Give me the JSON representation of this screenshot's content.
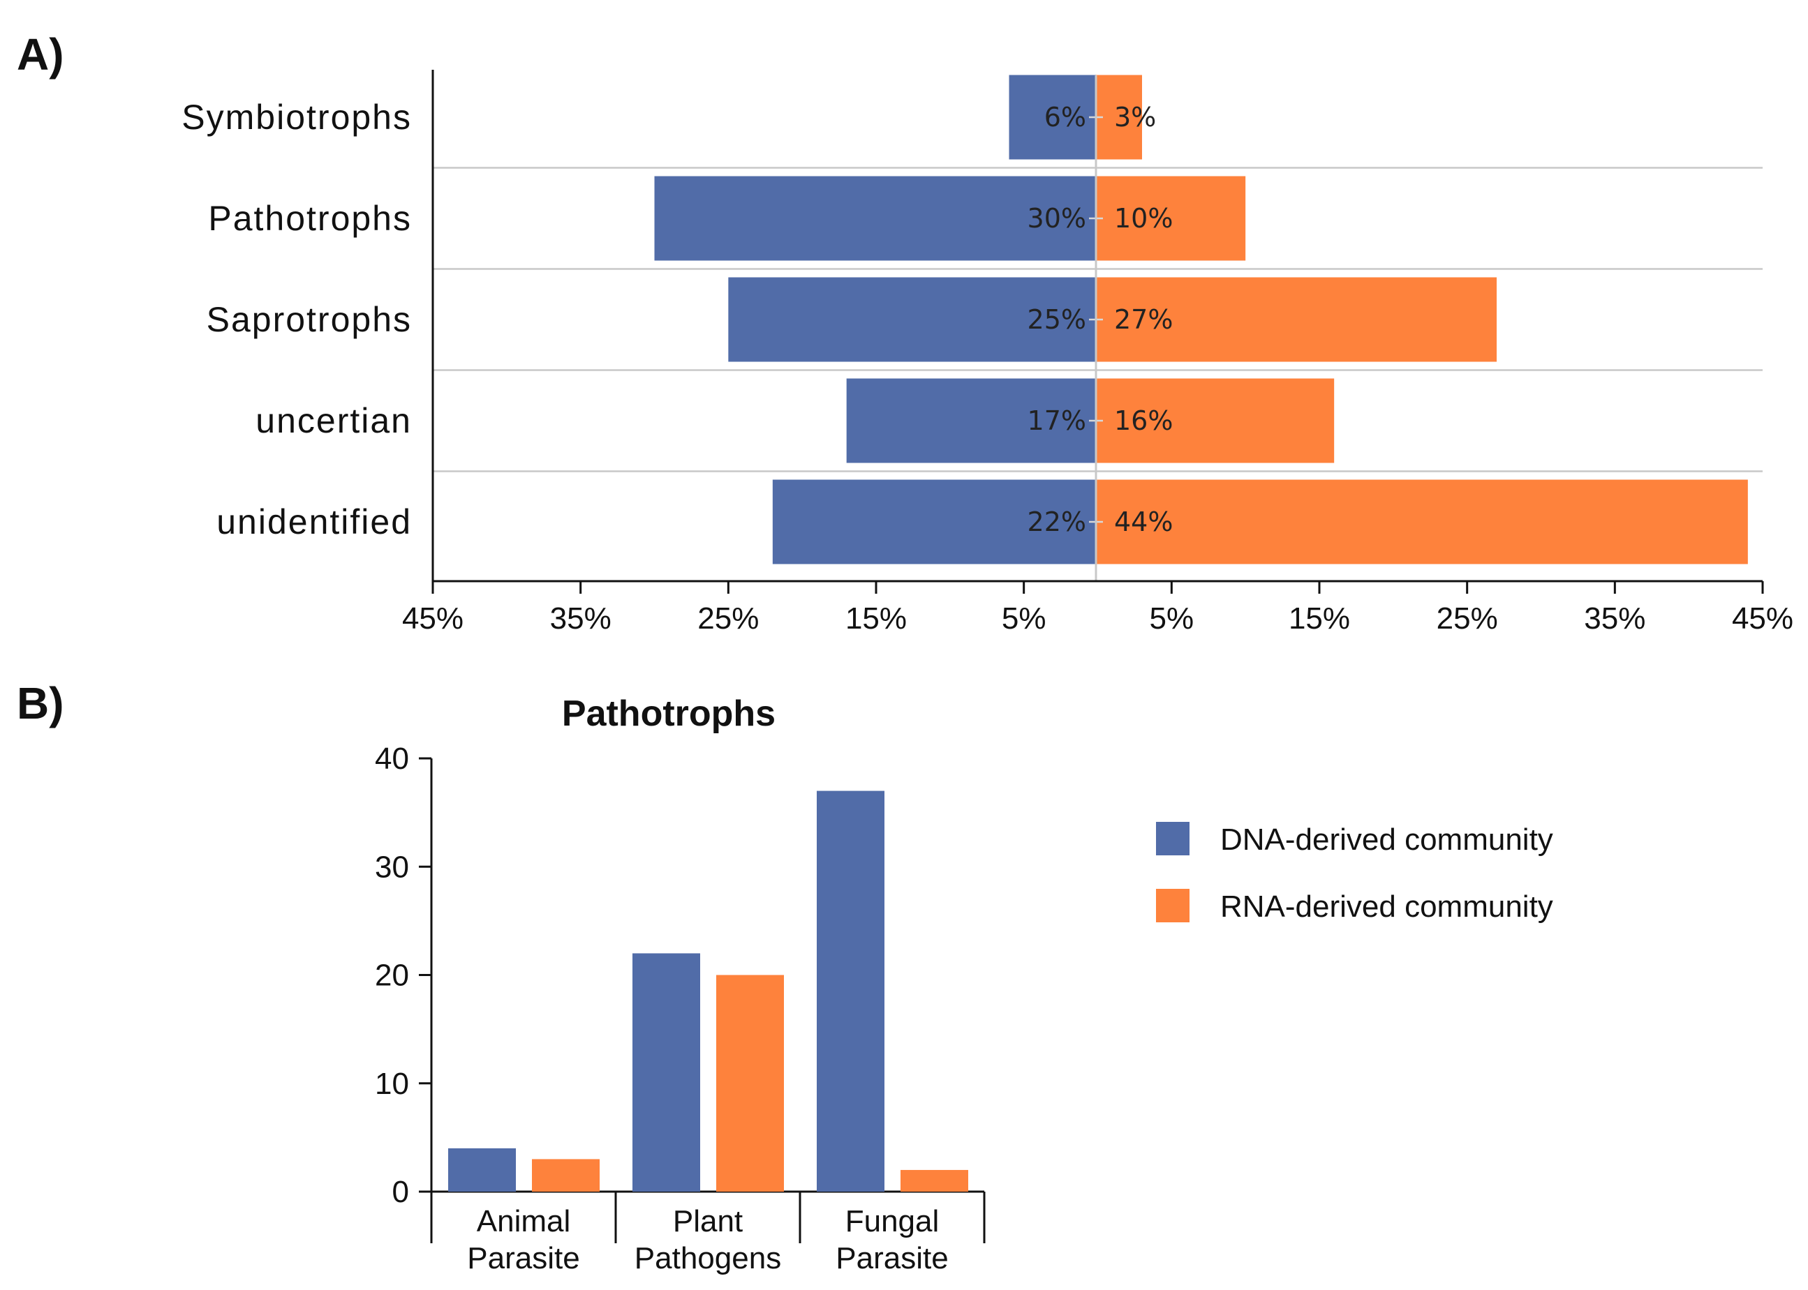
{
  "panels": {
    "a_label": "A)",
    "b_label": "B)"
  },
  "colors": {
    "dna": "#516ca8",
    "rna": "#fe823c"
  },
  "chart_data": [
    {
      "id": "A",
      "type": "bar",
      "orientation": "horizontal-diverging",
      "categories": [
        "Symbiotrophs",
        "Pathotrophs",
        "Saprotrophs",
        "uncertian",
        "unidentified"
      ],
      "series": [
        {
          "name": "DNA-derived community",
          "direction": "left",
          "values": [
            6,
            30,
            25,
            17,
            22
          ],
          "labels": [
            "6%",
            "30%",
            "25%",
            "17%",
            "22%"
          ]
        },
        {
          "name": "RNA-derived community",
          "direction": "right",
          "values": [
            3,
            10,
            27,
            16,
            44
          ],
          "labels": [
            "3%",
            "10%",
            "27%",
            "16%",
            "44%"
          ]
        }
      ],
      "xlim": [
        -45,
        45
      ],
      "xticks": [
        -45,
        -35,
        -25,
        -15,
        -5,
        5,
        15,
        25,
        35,
        45
      ],
      "xtick_labels": [
        "45%",
        "35%",
        "25%",
        "15%",
        "5%",
        "5%",
        "15%",
        "25%",
        "35%",
        "45%"
      ],
      "title": "",
      "xlabel": "",
      "ylabel": "",
      "grid": "horizontal separators between categories"
    },
    {
      "id": "B",
      "type": "bar",
      "title": "Pathotrophs",
      "categories": [
        {
          "line1": "Animal",
          "line2": "Parasite"
        },
        {
          "line1": "Plant",
          "line2": "Pathogens"
        },
        {
          "line1": "Fungal",
          "line2": "Parasite"
        }
      ],
      "series": [
        {
          "name": "DNA-derived community",
          "values": [
            4,
            22,
            37
          ]
        },
        {
          "name": "RNA-derived community",
          "values": [
            3,
            20,
            2
          ]
        }
      ],
      "ylim": [
        0,
        40
      ],
      "yticks": [
        0,
        10,
        20,
        30,
        40
      ],
      "ytick_labels": [
        "0",
        "10",
        "20",
        "30",
        "40"
      ],
      "xlabel": "",
      "ylabel": "",
      "legend": {
        "position": "right",
        "entries": [
          "DNA-derived community",
          "RNA-derived community"
        ]
      }
    }
  ]
}
